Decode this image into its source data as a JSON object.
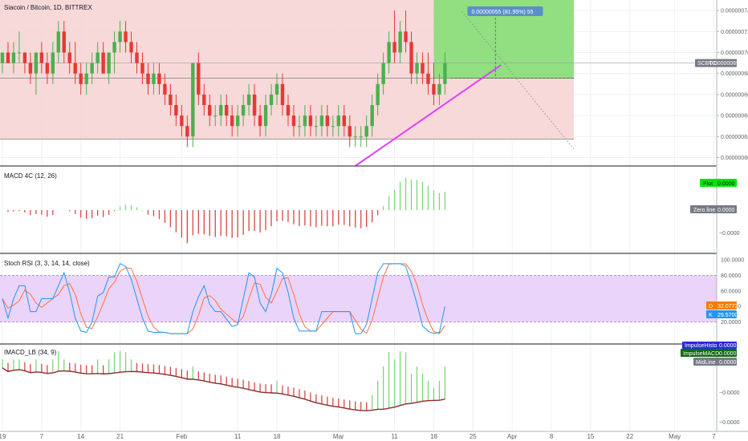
{
  "chart_data": {
    "type": "candlestick",
    "symbol": "Siacoin / Bitcoin, 1D, BITTREX",
    "price_ticks": [
      "0.00000074",
      "0.00000072",
      "0.00000070",
      "0.00000068",
      "0.00000066",
      "0.00000064",
      "0.00000062",
      "0.00000060"
    ],
    "price_tick_values": [
      74,
      72,
      70,
      68,
      66,
      64,
      62,
      60
    ],
    "price_unit": 1e-08,
    "current_price_label": "SCBTC",
    "current_price": "0.00000069",
    "current_price_value": 69,
    "ylim": [
      59.2,
      75
    ],
    "x_ticks": [
      "19",
      "7",
      "14",
      "21",
      "Feb",
      "11",
      "18",
      "Mar",
      "11",
      "18",
      "25",
      "Apr",
      "8",
      "15",
      "22",
      "May",
      "7"
    ],
    "x_tick_days": [
      0,
      7,
      14,
      21,
      32,
      42,
      49,
      60,
      70,
      77,
      84,
      91,
      98,
      105,
      112,
      120,
      127
    ],
    "candles": [
      [
        69,
        70,
        68,
        70
      ],
      [
        70,
        71,
        69,
        69
      ],
      [
        69,
        71,
        68,
        70
      ],
      [
        70,
        72,
        69,
        70
      ],
      [
        70,
        70,
        68,
        69
      ],
      [
        69,
        70,
        67,
        68
      ],
      [
        68,
        70,
        66,
        70
      ],
      [
        70,
        71,
        68,
        69
      ],
      [
        69,
        70,
        67,
        68
      ],
      [
        68,
        71,
        67,
        70
      ],
      [
        70,
        73,
        69,
        72
      ],
      [
        72,
        73,
        69,
        70
      ],
      [
        70,
        71,
        68,
        69
      ],
      [
        69,
        71,
        67,
        68
      ],
      [
        68,
        69,
        66,
        67
      ],
      [
        67,
        69,
        66,
        68
      ],
      [
        68,
        70,
        67,
        69
      ],
      [
        69,
        71,
        68,
        70
      ],
      [
        70,
        71,
        68,
        68
      ],
      [
        68,
        70,
        67,
        70
      ],
      [
        70,
        72,
        68,
        71
      ],
      [
        71,
        73,
        70,
        72
      ],
      [
        72,
        73,
        70,
        71
      ],
      [
        71,
        72,
        69,
        70
      ],
      [
        70,
        71,
        68,
        69
      ],
      [
        69,
        70,
        67,
        68
      ],
      [
        68,
        69,
        66,
        67
      ],
      [
        67,
        69,
        66,
        68
      ],
      [
        68,
        69,
        66,
        67
      ],
      [
        67,
        68,
        65,
        66
      ],
      [
        66,
        67,
        64,
        65
      ],
      [
        65,
        66,
        63,
        64
      ],
      [
        64,
        65,
        62,
        63
      ],
      [
        63,
        64,
        61,
        62
      ],
      [
        62,
        69,
        61,
        69
      ],
      [
        69,
        70,
        65,
        66
      ],
      [
        66,
        67,
        64,
        65
      ],
      [
        65,
        66,
        63,
        64
      ],
      [
        64,
        65,
        63,
        64
      ],
      [
        64,
        66,
        63,
        65
      ],
      [
        65,
        66,
        63,
        64
      ],
      [
        64,
        65,
        62,
        63
      ],
      [
        63,
        65,
        62,
        64
      ],
      [
        64,
        66,
        63,
        65
      ],
      [
        65,
        67,
        64,
        66
      ],
      [
        66,
        67,
        63,
        64
      ],
      [
        64,
        65,
        62,
        63
      ],
      [
        63,
        66,
        62,
        65
      ],
      [
        65,
        67,
        64,
        66
      ],
      [
        66,
        68,
        65,
        67
      ],
      [
        67,
        68,
        64,
        65
      ],
      [
        65,
        66,
        63,
        64
      ],
      [
        64,
        65,
        62,
        63
      ],
      [
        63,
        64,
        62,
        63
      ],
      [
        63,
        65,
        62,
        64
      ],
      [
        64,
        65,
        62,
        63
      ],
      [
        63,
        64,
        62,
        63
      ],
      [
        63,
        65,
        62,
        64
      ],
      [
        64,
        65,
        62,
        63
      ],
      [
        63,
        64,
        62,
        63
      ],
      [
        63,
        65,
        62,
        64
      ],
      [
        64,
        65,
        62,
        63
      ],
      [
        63,
        64,
        61,
        62
      ],
      [
        62,
        63,
        61,
        62
      ],
      [
        62,
        63,
        61,
        62
      ],
      [
        62,
        64,
        61,
        63
      ],
      [
        63,
        66,
        62,
        65
      ],
      [
        65,
        68,
        64,
        67
      ],
      [
        67,
        70,
        66,
        69
      ],
      [
        69,
        72,
        68,
        71
      ],
      [
        71,
        74,
        69,
        70
      ],
      [
        70,
        73,
        69,
        72
      ],
      [
        72,
        74,
        70,
        71
      ],
      [
        71,
        72,
        67,
        68
      ],
      [
        68,
        70,
        67,
        69
      ],
      [
        69,
        70,
        67,
        68
      ],
      [
        68,
        70,
        66,
        67
      ],
      [
        67,
        69,
        65,
        66
      ],
      [
        66,
        68,
        65,
        67
      ],
      [
        67,
        70,
        66,
        69
      ]
    ],
    "projection_label": "0.00000055 (81.95%) 55",
    "indicators": {
      "macd": {
        "label": "MACD 4C (12, 26)",
        "plot_label": "Plot",
        "plot_value": "0.0000",
        "zero_line_label": "Zero line",
        "zero_line_value": "0.0000",
        "scale_label": "−0.0000"
      },
      "stoch_rsi": {
        "label": "Stoch RSI (3, 3, 14, 14, close)",
        "levels": [
          "100.0000",
          "80.0000",
          "60.0000",
          "40.0000",
          "20.0000"
        ],
        "level_values": [
          100,
          80,
          60,
          40,
          20
        ],
        "d_label": "D",
        "d_value": "32.0773",
        "k_label": "K",
        "k_value": "29.5700"
      },
      "imacd": {
        "label": "IMACD_LB (34, 9)",
        "legend": [
          {
            "name": "ImpulseHisto",
            "value": "0.0000"
          },
          {
            "name": "ImpulseMACD",
            "value": "0.0000"
          },
          {
            "name": "MidLine",
            "value": "0.0000"
          }
        ],
        "scale_labels": [
          "−0.0000",
          "−0.0000"
        ]
      }
    },
    "colors": {
      "up": "#4caf50",
      "down": "#e53935",
      "trendline": "#e040fb",
      "target_zone": "#8bdf7c",
      "stop_zone": "#f6d2d2",
      "macd_up": "#7bd67b",
      "macd_down": "#d84545",
      "stoch_band": "#e8cff8",
      "stoch_k": "#2196f3",
      "stoch_d": "#ff7043",
      "imacd_midline": "#8b2b2b",
      "badge_d": "#f57c00",
      "badge_k": "#2196f3",
      "plot_badge": "#00e600"
    }
  }
}
